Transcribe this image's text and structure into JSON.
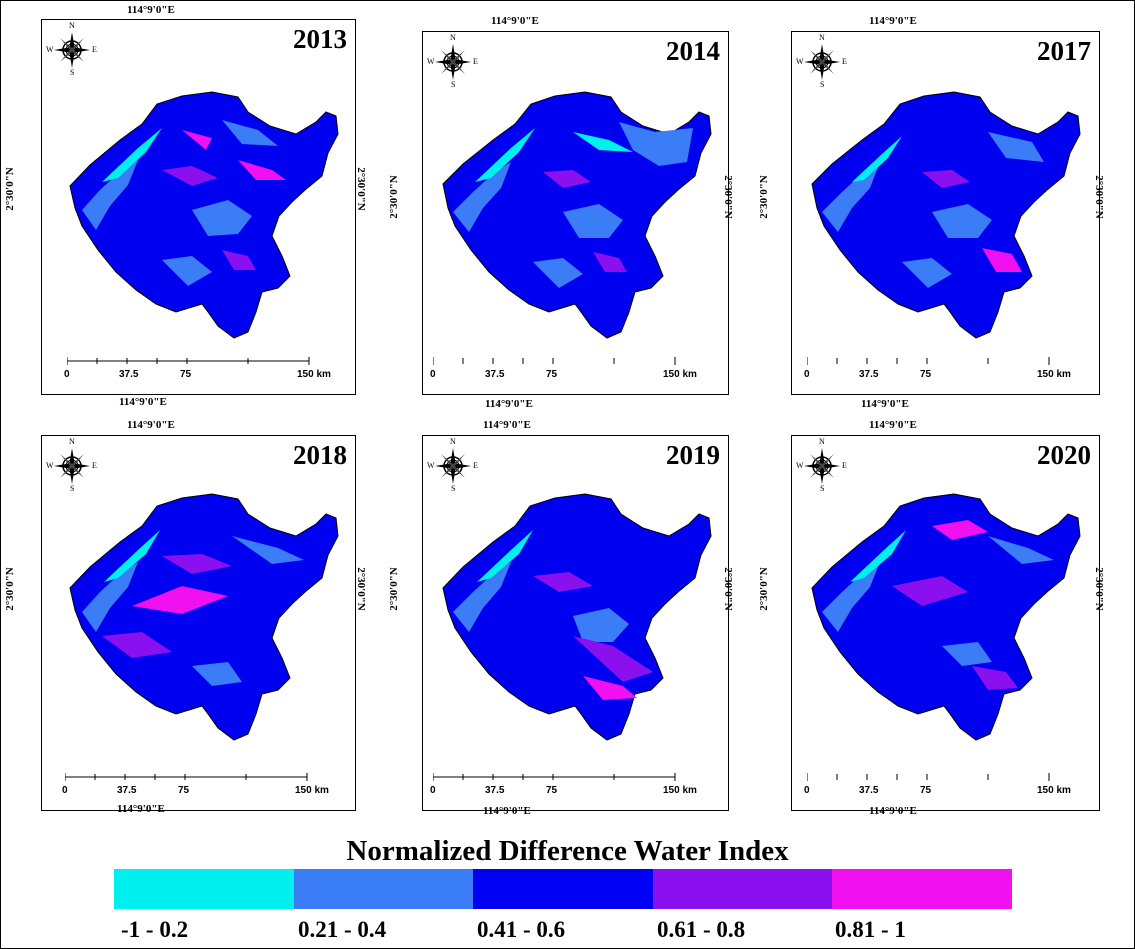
{
  "title": "Normalized Difference Water Index",
  "coordinates": {
    "longitude": "114°9'0\"E",
    "latitude": "2°30'0\"N"
  },
  "compass": {
    "n": "N",
    "s": "S",
    "e": "E",
    "w": "W"
  },
  "scale": {
    "ticks": [
      "0",
      "37.5",
      "75",
      "150 km"
    ]
  },
  "panels": [
    {
      "year": "2013"
    },
    {
      "year": "2014"
    },
    {
      "year": "2017"
    },
    {
      "year": "2018"
    },
    {
      "year": "2019"
    },
    {
      "year": "2020"
    }
  ],
  "legend": [
    {
      "label": "-1 - 0.2",
      "color": "#00f0f0"
    },
    {
      "label": "0.21 - 0.4",
      "color": "#3b7df7"
    },
    {
      "label": "0.41 - 0.6",
      "color": "#0000f5"
    },
    {
      "label": "0.61 - 0.8",
      "color": "#8a10f0"
    },
    {
      "label": "0.81 - 1",
      "color": "#f010f0"
    }
  ]
}
